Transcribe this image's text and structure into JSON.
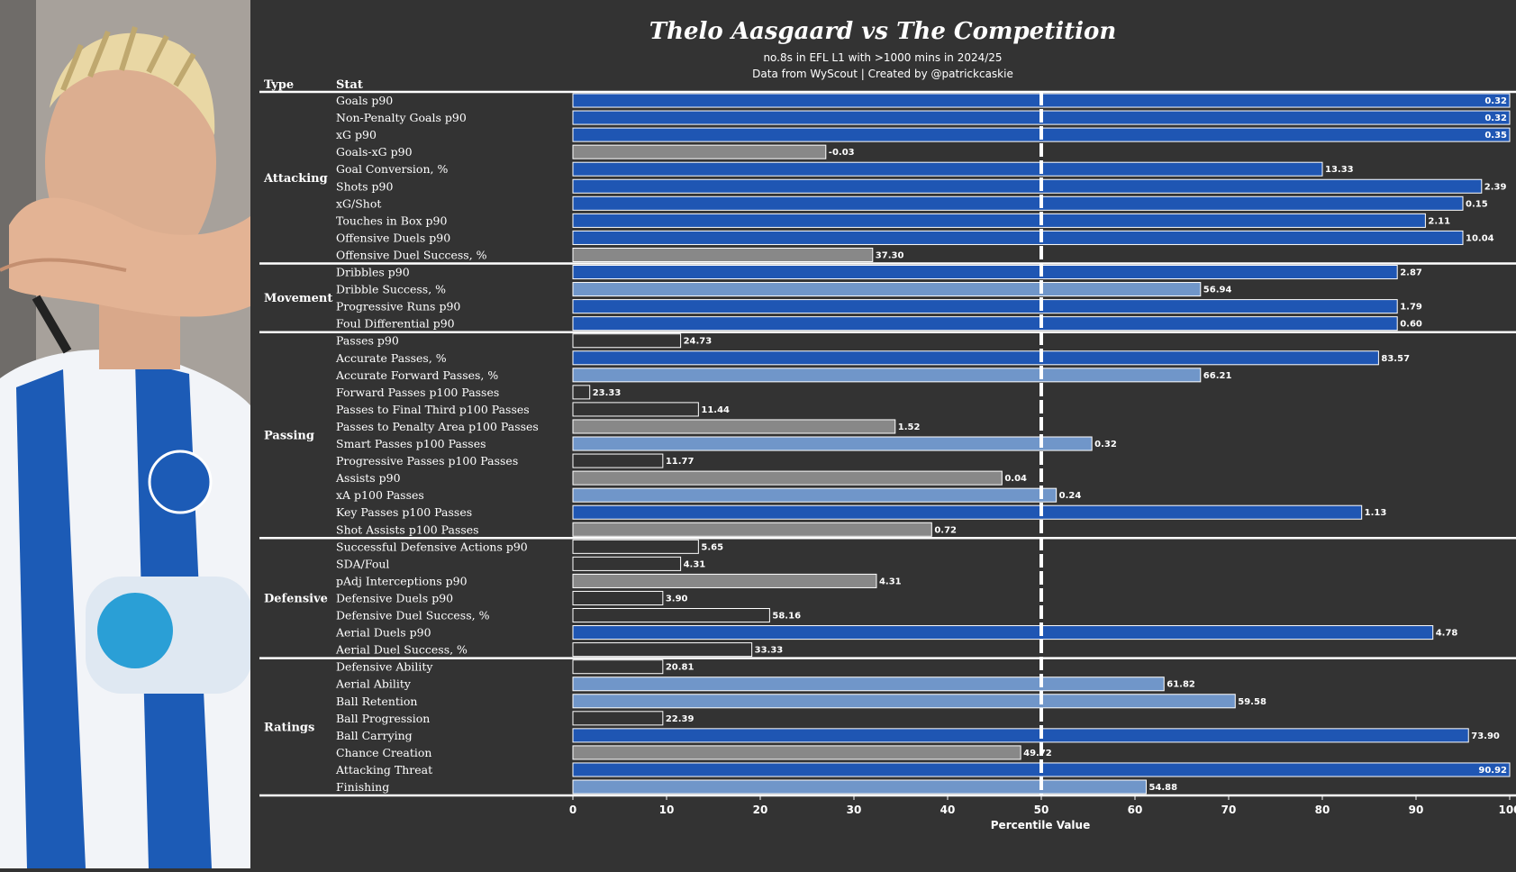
{
  "chart_data": {
    "type": "bar",
    "orientation": "horizontal",
    "title": "Thelo Aasgaard vs The Competition",
    "subtitle_line1": "no.8s in EFL L1 with >1000 mins in 2024/25",
    "subtitle_line2": "Data from WyScout | Created by @patrickcaskie",
    "column_headers": {
      "type": "Type",
      "stat": "Stat"
    },
    "xlabel": "Percentile Value",
    "xlim": [
      0,
      100
    ],
    "x_ticks": [
      0,
      10,
      20,
      30,
      40,
      50,
      60,
      70,
      80,
      90,
      100
    ],
    "reference_line": 50,
    "colors": {
      "background": "#333333",
      "high": "#1f56b3",
      "above_avg": "#7096c9",
      "below_avg": "#888888",
      "low": "#333333",
      "bar_edge": "#ffffff",
      "separator": "#ffffff"
    },
    "groups": [
      {
        "name": "Attacking",
        "stats": [
          {
            "stat": "Goals p90",
            "percentile": 100,
            "value": "0.32",
            "tier": "high"
          },
          {
            "stat": "Non-Penalty Goals p90",
            "percentile": 100,
            "value": "0.32",
            "tier": "high"
          },
          {
            "stat": "xG p90",
            "percentile": 100,
            "value": "0.35",
            "tier": "high"
          },
          {
            "stat": "Goals-xG p90",
            "percentile": 27,
            "value": "-0.03",
            "tier": "below_avg"
          },
          {
            "stat": "Goal Conversion, %",
            "percentile": 80,
            "value": "13.33",
            "tier": "high"
          },
          {
            "stat": "Shots p90",
            "percentile": 97,
            "value": "2.39",
            "tier": "high"
          },
          {
            "stat": "xG/Shot",
            "percentile": 95,
            "value": "0.15",
            "tier": "high"
          },
          {
            "stat": "Touches in Box p90",
            "percentile": 91,
            "value": "2.11",
            "tier": "high"
          },
          {
            "stat": "Offensive Duels p90",
            "percentile": 95,
            "value": "10.04",
            "tier": "high"
          },
          {
            "stat": "Offensive Duel Success, %",
            "percentile": 32,
            "value": "37.30",
            "tier": "below_avg"
          }
        ]
      },
      {
        "name": "Movement",
        "stats": [
          {
            "stat": "Dribbles p90",
            "percentile": 88,
            "value": "2.87",
            "tier": "high"
          },
          {
            "stat": "Dribble Success, %",
            "percentile": 67,
            "value": "56.94",
            "tier": "above_avg"
          },
          {
            "stat": "Progressive Runs p90",
            "percentile": 88,
            "value": "1.79",
            "tier": "high"
          },
          {
            "stat": "Foul Differential p90",
            "percentile": 88,
            "value": "0.60",
            "tier": "high"
          }
        ]
      },
      {
        "name": "Passing",
        "stats": [
          {
            "stat": "Passes p90",
            "percentile": 11.5,
            "value": "24.73",
            "tier": "low"
          },
          {
            "stat": "Accurate Passes, %",
            "percentile": 86,
            "value": "83.57",
            "tier": "high"
          },
          {
            "stat": "Accurate Forward Passes, %",
            "percentile": 67,
            "value": "66.21",
            "tier": "above_avg"
          },
          {
            "stat": "Forward Passes p100 Passes",
            "percentile": 1.8,
            "value": "23.33",
            "tier": "low"
          },
          {
            "stat": "Passes to Final Third p100 Passes",
            "percentile": 13.4,
            "value": "11.44",
            "tier": "low"
          },
          {
            "stat": "Passes to Penalty Area p100 Passes",
            "percentile": 34.4,
            "value": "1.52",
            "tier": "below_avg"
          },
          {
            "stat": "Smart Passes p100 Passes",
            "percentile": 55.4,
            "value": "0.32",
            "tier": "above_avg"
          },
          {
            "stat": "Progressive Passes p100 Passes",
            "percentile": 9.6,
            "value": "11.77",
            "tier": "low"
          },
          {
            "stat": "Assists p90",
            "percentile": 45.8,
            "value": "0.04",
            "tier": "below_avg"
          },
          {
            "stat": "xA p100 Passes",
            "percentile": 51.6,
            "value": "0.24",
            "tier": "above_avg"
          },
          {
            "stat": "Key Passes p100 Passes",
            "percentile": 84.2,
            "value": "1.13",
            "tier": "high"
          },
          {
            "stat": "Shot Assists p100 Passes",
            "percentile": 38.3,
            "value": "0.72",
            "tier": "below_avg"
          }
        ]
      },
      {
        "name": "Defensive",
        "stats": [
          {
            "stat": "Successful Defensive Actions p90",
            "percentile": 13.4,
            "value": "5.65",
            "tier": "low"
          },
          {
            "stat": "SDA/Foul",
            "percentile": 11.5,
            "value": "4.31",
            "tier": "low"
          },
          {
            "stat": "pAdj Interceptions p90",
            "percentile": 32.4,
            "value": "4.31",
            "tier": "below_avg"
          },
          {
            "stat": "Defensive Duels p90",
            "percentile": 9.6,
            "value": "3.90",
            "tier": "low"
          },
          {
            "stat": "Defensive Duel Success, %",
            "percentile": 21,
            "value": "58.16",
            "tier": "low"
          },
          {
            "stat": "Aerial Duels p90",
            "percentile": 91.8,
            "value": "4.78",
            "tier": "high"
          },
          {
            "stat": "Aerial Duel Success, %",
            "percentile": 19.1,
            "value": "33.33",
            "tier": "low"
          }
        ]
      },
      {
        "name": "Ratings",
        "stats": [
          {
            "stat": "Defensive Ability",
            "percentile": 9.6,
            "value": "20.81",
            "tier": "low"
          },
          {
            "stat": "Aerial Ability",
            "percentile": 63.1,
            "value": "61.82",
            "tier": "above_avg"
          },
          {
            "stat": "Ball Retention",
            "percentile": 70.7,
            "value": "59.58",
            "tier": "above_avg"
          },
          {
            "stat": "Ball Progression",
            "percentile": 9.6,
            "value": "22.39",
            "tier": "low"
          },
          {
            "stat": "Ball Carrying",
            "percentile": 95.6,
            "value": "73.90",
            "tier": "high"
          },
          {
            "stat": "Chance Creation",
            "percentile": 47.8,
            "value": "49.72",
            "tier": "below_avg"
          },
          {
            "stat": "Attacking Threat",
            "percentile": 100,
            "value": "90.92",
            "tier": "high"
          },
          {
            "stat": "Finishing",
            "percentile": 61.2,
            "value": "54.88",
            "tier": "above_avg"
          }
        ]
      }
    ]
  }
}
